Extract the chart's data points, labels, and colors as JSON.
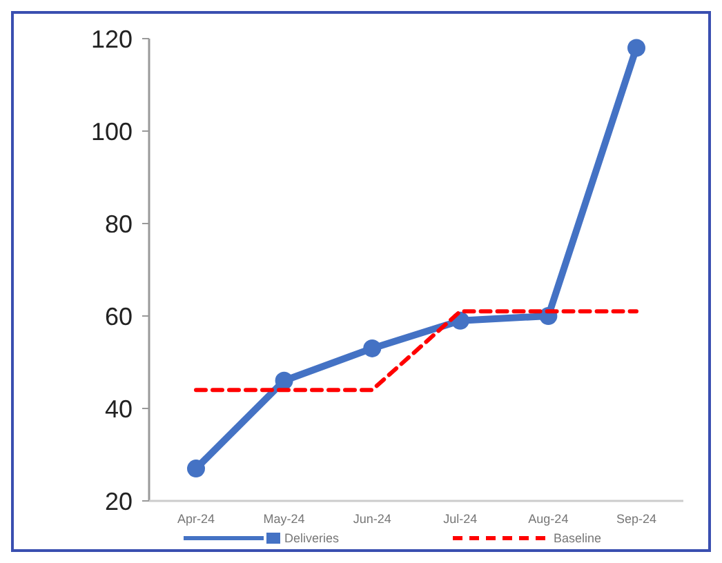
{
  "chart_data": {
    "type": "line",
    "categories": [
      "Apr-24",
      "May-24",
      "Jun-24",
      "Jul-24",
      "Aug-24",
      "Sep-24"
    ],
    "series": [
      {
        "name": "Deliveries",
        "color": "#4472c4",
        "values": [
          27,
          46,
          53,
          59,
          60,
          118
        ],
        "marker": "circle",
        "line_style": "solid"
      },
      {
        "name": "Baseline",
        "color": "#ff0000",
        "values": [
          44,
          44,
          44,
          61,
          61,
          61
        ],
        "marker": "none",
        "line_style": "dashed"
      }
    ],
    "ylim": [
      20,
      120
    ],
    "yticks": [
      20,
      40,
      60,
      80,
      100,
      120
    ],
    "grid": false,
    "legend": "bottom"
  }
}
